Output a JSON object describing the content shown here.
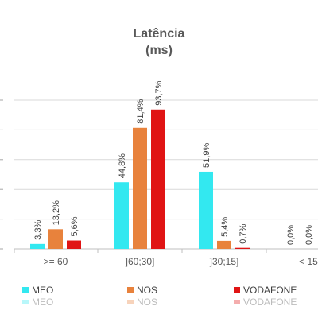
{
  "chart_data": {
    "type": "bar",
    "title": "Latência",
    "subtitle": "(ms)",
    "categories": [
      ">= 60",
      "]60;30]",
      "]30;15]",
      "< 15"
    ],
    "series": [
      {
        "name": "MEO",
        "color": "#33E8F0",
        "values": [
          3.3,
          44.8,
          51.9,
          0.0
        ],
        "labels": [
          "3,3%",
          "44,8%",
          "51,9%",
          "0,0%"
        ]
      },
      {
        "name": "NOS",
        "color": "#E8823C",
        "values": [
          13.2,
          81.4,
          5.4,
          0.0
        ],
        "labels": [
          "13,2%",
          "81,4%",
          "5,4%",
          "0,0%"
        ]
      },
      {
        "name": "VODAFONE",
        "color": "#E01414",
        "values": [
          5.6,
          93.7,
          0.7,
          0.0
        ],
        "labels": [
          "5,6%",
          "93,7%",
          "0,7%",
          "0,0%"
        ]
      }
    ],
    "ylim": [
      0,
      100
    ],
    "grid": true,
    "legend": "bottom"
  }
}
